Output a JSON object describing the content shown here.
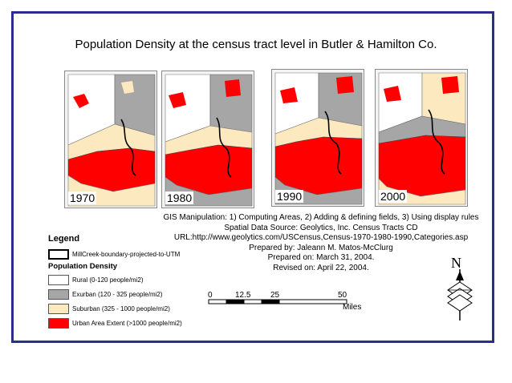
{
  "title": "Population Density at the census tract level in Butler & Hamilton Co.",
  "maps": [
    {
      "year": "1970"
    },
    {
      "year": "1980"
    },
    {
      "year": "1990"
    },
    {
      "year": "2000"
    }
  ],
  "info_lines": [
    "GIS Manipulation: 1) Computing Areas, 2) Adding & defining fields,  3) Using display rules",
    "Spatial Data Source: Geolytics, Inc. Census Tracts CD",
    "URL:http://www.geolytics.com/USCensus,Census-1970-1980-1990,Categories.asp",
    "Prepared by: Jaleann M. Matos-McClurg",
    "Prepared on: March 31, 2004.",
    "Revised on: April 22, 2004."
  ],
  "legend": {
    "title": "Legend",
    "boundary_label": "MillCreek-boundary-projected-to-UTM",
    "density_title": "Population Density",
    "classes": [
      {
        "label": "Rural (0-120 people/mi2)",
        "color": "#ffffff"
      },
      {
        "label": "Exurban (120 - 325 people/mi2)",
        "color": "#a6a6a6"
      },
      {
        "label": "Suburban (325 - 1000 people/mi2)",
        "color": "#fde9bf"
      },
      {
        "label": "Urban Area Extent (>1000 people/mi2)",
        "color": "#ff0000"
      }
    ]
  },
  "scale": {
    "ticks": [
      "0",
      "12.5",
      "25",
      "50"
    ],
    "unit": "Miles"
  },
  "north": {
    "label": "N"
  },
  "colors": {
    "frame": "#2b2f8c"
  }
}
